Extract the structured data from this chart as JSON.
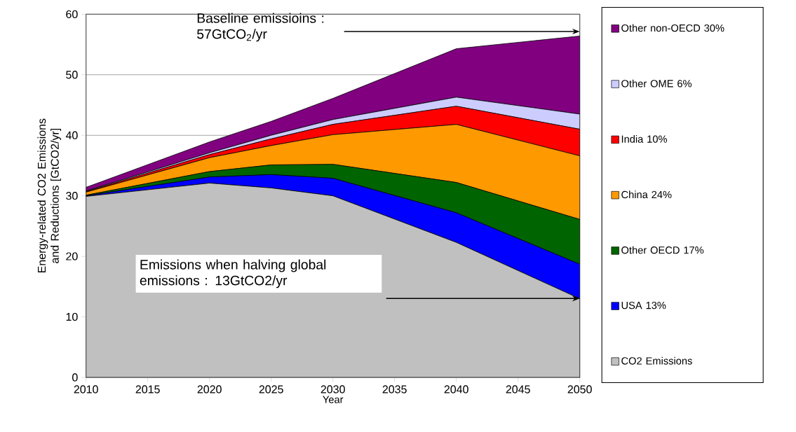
{
  "chart_data": {
    "type": "area",
    "stacked": true,
    "xlabel": "Year",
    "ylabel": "Energy-related CO2 Emissions and Reductions [GtCO2/yr]",
    "x": [
      2010,
      2020,
      2025,
      2030,
      2040,
      2050
    ],
    "series": [
      {
        "name": "CO2 Emissions",
        "color": "#c0c0c0",
        "values": [
          29.9,
          32.1,
          31.3,
          30.0,
          22.3,
          13.0
        ]
      },
      {
        "name": "USA   13%",
        "color": "#0000ff",
        "values": [
          0.1,
          1.0,
          2.2,
          2.9,
          4.9,
          5.7
        ]
      },
      {
        "name": "Other OECD   17%",
        "color": "#006400",
        "values": [
          0.1,
          0.9,
          1.6,
          2.3,
          5.0,
          7.4
        ]
      },
      {
        "name": "China   24%",
        "color": "#ff9900",
        "values": [
          0.5,
          2.3,
          3.2,
          4.9,
          9.6,
          10.5
        ]
      },
      {
        "name": "India   10%",
        "color": "#ff0000",
        "values": [
          0.1,
          0.5,
          1.1,
          1.7,
          3.0,
          4.4
        ]
      },
      {
        "name": "Other OME   6%",
        "color": "#ccccff",
        "values": [
          0.1,
          0.3,
          0.6,
          0.8,
          1.5,
          2.5
        ]
      },
      {
        "name": "Other non-OECD   30%",
        "color": "#800080",
        "values": [
          0.6,
          1.8,
          2.3,
          3.5,
          8.0,
          12.9
        ]
      }
    ],
    "xlim": [
      2010,
      2050
    ],
    "xticks": [
      2010,
      2015,
      2020,
      2025,
      2030,
      2035,
      2040,
      2045,
      2050
    ],
    "ylim": [
      0,
      60
    ],
    "yticks": [
      0,
      10,
      20,
      30,
      40,
      50,
      60
    ],
    "grid": "y",
    "legend": "right",
    "annotations": [
      "Baseline emissioins : 57GtCO$_{2}$/yr",
      "Emissions when halving global emissions : 13GtCO2/yr"
    ]
  }
}
